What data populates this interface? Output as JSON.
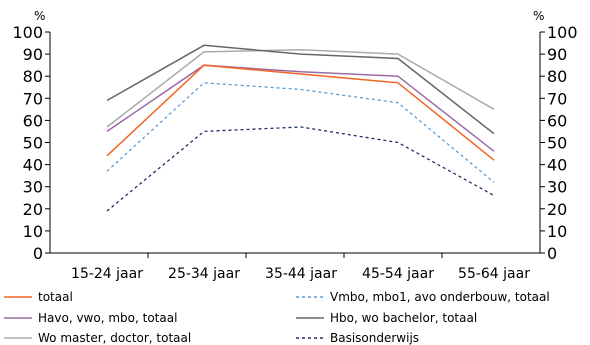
{
  "chart_data": {
    "type": "line",
    "title": "",
    "y_unit_left": "%",
    "y_unit_right": "%",
    "ylim": [
      0,
      100
    ],
    "y_ticks": [
      0,
      10,
      20,
      30,
      40,
      50,
      60,
      70,
      80,
      90,
      100
    ],
    "grid": false,
    "legend_position": "bottom",
    "categories": [
      "15-24 jaar",
      "25-34 jaar",
      "35-44 jaar",
      "45-54 jaar",
      "55-64 jaar"
    ],
    "series": [
      {
        "name": "totaal",
        "values": [
          44,
          85,
          81,
          77,
          42
        ],
        "color": "#f26522",
        "dash": "solid"
      },
      {
        "name": "Vmbo, mbo1, avo onderbouw, totaal",
        "values": [
          37,
          77,
          74,
          68,
          32
        ],
        "color": "#5b9bd5",
        "dash": "dashed"
      },
      {
        "name": "Havo, vwo, mbo, totaal",
        "values": [
          55,
          85,
          82,
          80,
          46
        ],
        "color": "#9b6aa6",
        "dash": "solid"
      },
      {
        "name": "Hbo, wo bachelor, totaal",
        "values": [
          69,
          94,
          90,
          88,
          54
        ],
        "color": "#666666",
        "dash": "solid"
      },
      {
        "name": "Wo master, doctor, totaal",
        "values": [
          57,
          91,
          92,
          90,
          65
        ],
        "color": "#aaaaaa",
        "dash": "solid"
      },
      {
        "name": "Basisonderwijs",
        "values": [
          19,
          55,
          57,
          50,
          26
        ],
        "color": "#1f2d6b",
        "dash": "dashed"
      }
    ]
  }
}
